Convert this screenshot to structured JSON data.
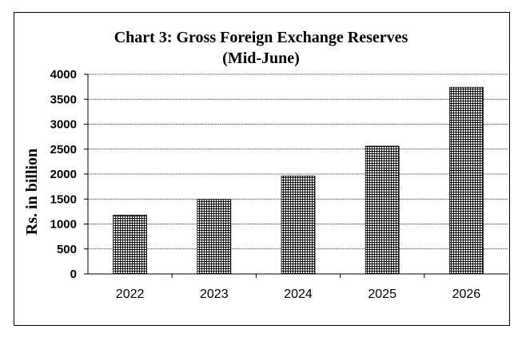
{
  "chart_data": {
    "type": "bar",
    "title": "Chart  3: Gross Foreign Exchange Reserves",
    "subtitle": "(Mid-June)",
    "xlabel": "",
    "ylabel": "Rs. in billion",
    "categories": [
      "2022",
      "2023",
      "2024",
      "2025",
      "2026"
    ],
    "values": [
      1180,
      1490,
      1960,
      2560,
      3740
    ],
    "ylim": [
      0,
      4000
    ],
    "yticks": [
      "0",
      "500",
      "1000",
      "1500",
      "2000",
      "2500",
      "3000",
      "3500",
      "4000"
    ],
    "grid": true,
    "bar_fill": "#000000",
    "grid_color": "#000000"
  }
}
